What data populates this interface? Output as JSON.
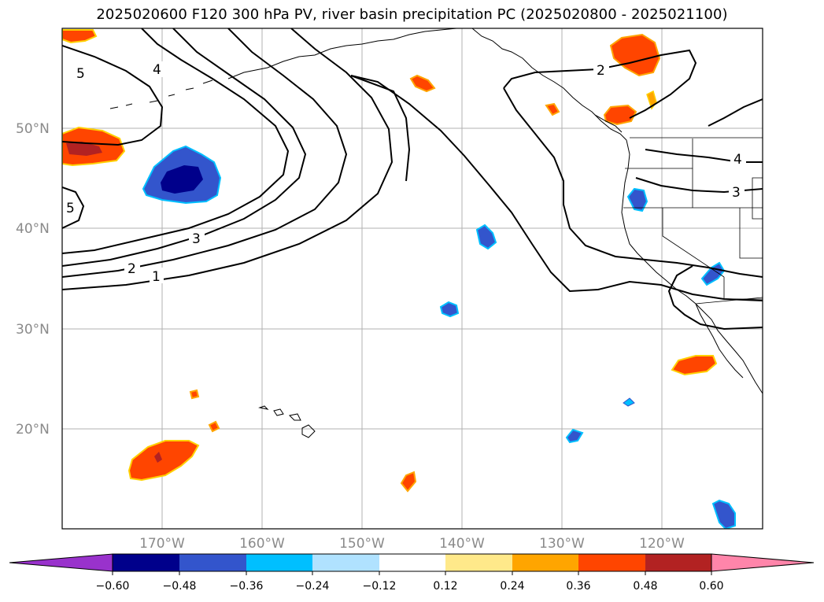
{
  "title": "2025020600 F120 300 hPa PV, river basin precipitation PC (2025020800 - 2025021100)",
  "map": {
    "lat_gridlines": [
      {
        "label": "20°N"
      },
      {
        "label": "30°N"
      },
      {
        "label": "40°N"
      },
      {
        "label": "50°N"
      }
    ],
    "lon_gridlines": [
      {
        "label": "170°W"
      },
      {
        "label": "160°W"
      },
      {
        "label": "150°W"
      },
      {
        "label": "140°W"
      },
      {
        "label": "130°W"
      },
      {
        "label": "120°W"
      }
    ],
    "contour_labels": [
      "5",
      "4",
      "5",
      "3",
      "2",
      "1",
      "2",
      "4",
      "3"
    ]
  },
  "colorbar": {
    "ticks": [
      "−0.60",
      "−0.48",
      "−0.36",
      "−0.24",
      "−0.12",
      "0.12",
      "0.24",
      "0.36",
      "0.48",
      "0.60"
    ],
    "colors": [
      "#9932cc",
      "#00008b",
      "#3355cc",
      "#00bfff",
      "#b0e2ff",
      "#ffffff",
      "#ffe98a",
      "#ffa500",
      "#ff4500",
      "#b22222",
      "#ff85aa"
    ]
  },
  "colors": {
    "gridline": "#b0b0b0",
    "contour": "#000000"
  }
}
